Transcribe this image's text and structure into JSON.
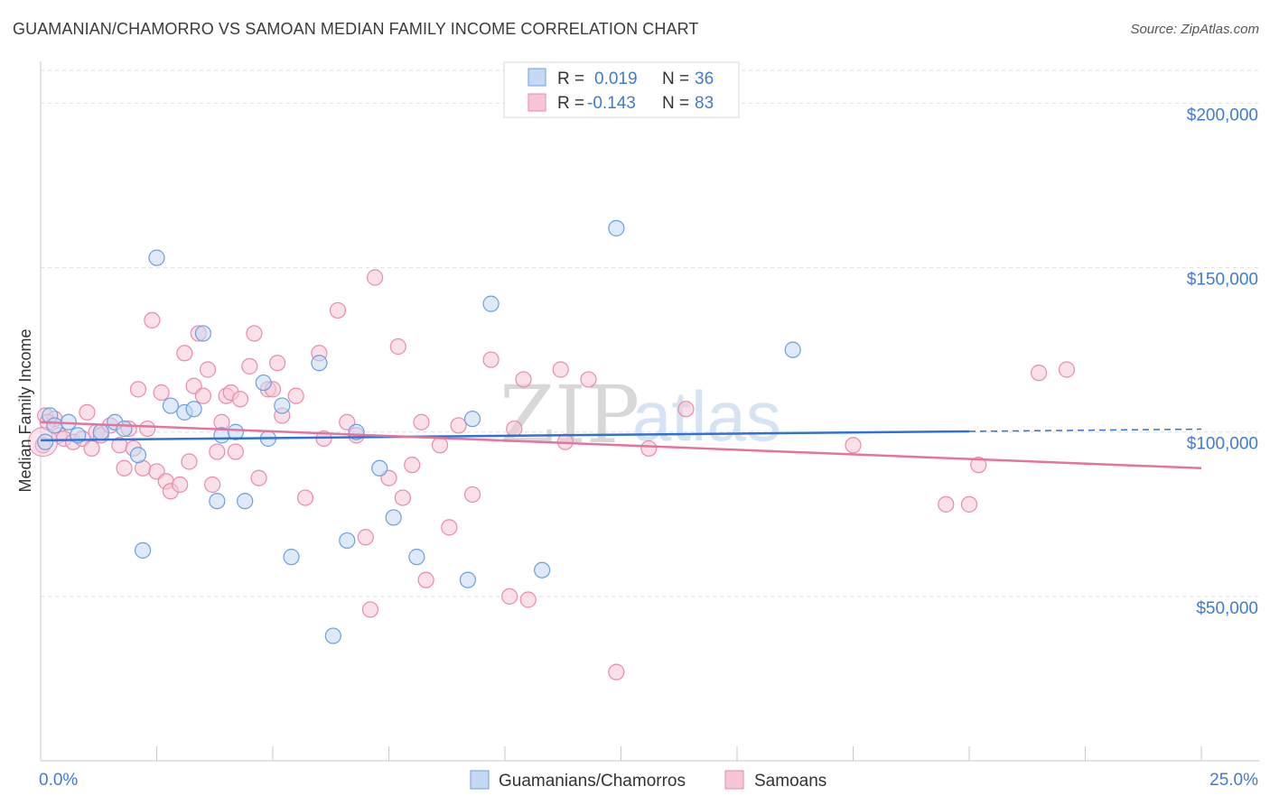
{
  "title": "GUAMANIAN/CHAMORRO VS SAMOAN MEDIAN FAMILY INCOME CORRELATION CHART",
  "source": "Source: ZipAtlas.com",
  "watermark": {
    "zip": "ZIP",
    "atlas": "atlas"
  },
  "colors": {
    "blue": "#6a9fe0",
    "blue_fill": "#c4d9f4",
    "pink": "#e98aaa",
    "pink_fill": "#f7c6d6",
    "blue_line": "#2f72d4",
    "pink_line": "#e7739d",
    "label": "#3e7bd4"
  },
  "legend_top": {
    "rows": [
      {
        "r_label": "R =",
        "r_value": "0.019",
        "n_label": "N =",
        "n_value": "36"
      },
      {
        "r_label": "R =",
        "r_value": "-0.143",
        "n_label": "N =",
        "n_value": "83"
      }
    ]
  },
  "legend_bottom": [
    "Guamanians/Chamorros",
    "Samoans"
  ],
  "chart_data": {
    "type": "scatter",
    "title": "GUAMANIAN/CHAMORRO VS SAMOAN MEDIAN FAMILY INCOME CORRELATION CHART",
    "xlabel": "",
    "ylabel": "Median Family Income",
    "xlim": [
      0,
      25
    ],
    "ylim": [
      0,
      210000
    ],
    "x_tick_labels": [
      "0.0%",
      "25.0%"
    ],
    "y_ticks": [
      50000,
      100000,
      150000,
      200000
    ],
    "y_tick_labels": [
      "$50,000",
      "$100,000",
      "$150,000",
      "$200,000"
    ],
    "series": [
      {
        "name": "Guamanians/Chamorros",
        "r": 0.019,
        "n": 36,
        "trend": {
          "x": [
            0,
            20
          ],
          "y": [
            97500,
            100200
          ],
          "dashed_to": 25
        },
        "points": [
          [
            0.2,
            105
          ],
          [
            0.3,
            102
          ],
          [
            0.6,
            103
          ],
          [
            0.8,
            99
          ],
          [
            1.3,
            100
          ],
          [
            1.6,
            103
          ],
          [
            1.8,
            101
          ],
          [
            2.1,
            93
          ],
          [
            2.2,
            64
          ],
          [
            2.5,
            153
          ],
          [
            2.8,
            108
          ],
          [
            3.1,
            106
          ],
          [
            3.3,
            107
          ],
          [
            3.5,
            130
          ],
          [
            3.8,
            79
          ],
          [
            3.9,
            99
          ],
          [
            4.2,
            100
          ],
          [
            4.4,
            79
          ],
          [
            4.8,
            115
          ],
          [
            4.9,
            98
          ],
          [
            5.2,
            108
          ],
          [
            5.4,
            62
          ],
          [
            6.0,
            121
          ],
          [
            6.3,
            38
          ],
          [
            6.6,
            67
          ],
          [
            6.8,
            100
          ],
          [
            7.3,
            89
          ],
          [
            7.6,
            74
          ],
          [
            8.1,
            62
          ],
          [
            9.2,
            55
          ],
          [
            9.3,
            104
          ],
          [
            9.7,
            139
          ],
          [
            10.8,
            58
          ],
          [
            12.4,
            162
          ],
          [
            16.2,
            125
          ],
          [
            0.1,
            97
          ]
        ]
      },
      {
        "name": "Samoans",
        "r": -0.143,
        "n": 83,
        "trend": {
          "x": [
            0,
            25
          ],
          "y": [
            103000,
            89000
          ]
        },
        "points": [
          [
            0.05,
            96
          ],
          [
            0.1,
            105
          ],
          [
            0.3,
            104
          ],
          [
            0.4,
            99
          ],
          [
            0.5,
            98
          ],
          [
            0.7,
            97
          ],
          [
            0.9,
            98
          ],
          [
            1.0,
            106
          ],
          [
            1.1,
            95
          ],
          [
            1.2,
            100
          ],
          [
            1.3,
            99
          ],
          [
            1.5,
            102
          ],
          [
            1.7,
            96
          ],
          [
            1.8,
            89
          ],
          [
            2.0,
            95
          ],
          [
            2.1,
            113
          ],
          [
            2.2,
            89
          ],
          [
            2.3,
            101
          ],
          [
            2.4,
            134
          ],
          [
            2.5,
            88
          ],
          [
            2.6,
            112
          ],
          [
            2.7,
            85
          ],
          [
            2.8,
            82
          ],
          [
            3.0,
            84
          ],
          [
            3.1,
            124
          ],
          [
            3.2,
            91
          ],
          [
            3.3,
            114
          ],
          [
            3.4,
            130
          ],
          [
            3.5,
            111
          ],
          [
            3.6,
            119
          ],
          [
            3.7,
            84
          ],
          [
            3.8,
            94
          ],
          [
            3.9,
            103
          ],
          [
            4.0,
            111
          ],
          [
            4.1,
            112
          ],
          [
            4.2,
            94
          ],
          [
            4.3,
            110
          ],
          [
            4.5,
            120
          ],
          [
            4.6,
            130
          ],
          [
            4.7,
            86
          ],
          [
            4.9,
            113
          ],
          [
            5.0,
            113
          ],
          [
            5.1,
            121
          ],
          [
            5.2,
            105
          ],
          [
            5.5,
            111
          ],
          [
            5.7,
            80
          ],
          [
            6.0,
            124
          ],
          [
            6.1,
            98
          ],
          [
            6.4,
            137
          ],
          [
            6.6,
            103
          ],
          [
            6.8,
            99
          ],
          [
            7.0,
            68
          ],
          [
            7.1,
            46
          ],
          [
            7.2,
            147
          ],
          [
            7.5,
            86
          ],
          [
            7.7,
            126
          ],
          [
            7.8,
            80
          ],
          [
            8.0,
            90
          ],
          [
            8.2,
            103
          ],
          [
            8.3,
            55
          ],
          [
            8.6,
            96
          ],
          [
            8.8,
            71
          ],
          [
            9.0,
            102
          ],
          [
            9.3,
            81
          ],
          [
            9.7,
            122
          ],
          [
            10.1,
            50
          ],
          [
            10.2,
            101
          ],
          [
            10.5,
            49
          ],
          [
            10.4,
            116
          ],
          [
            11.2,
            119
          ],
          [
            11.3,
            97
          ],
          [
            11.8,
            116
          ],
          [
            12.4,
            27
          ],
          [
            13.1,
            95
          ],
          [
            13.9,
            107
          ],
          [
            17.5,
            96
          ],
          [
            19.5,
            78
          ],
          [
            20.0,
            78
          ],
          [
            20.2,
            90
          ],
          [
            21.5,
            118
          ],
          [
            22.1,
            119
          ],
          [
            0.15,
            103
          ],
          [
            1.9,
            101
          ]
        ]
      }
    ]
  }
}
